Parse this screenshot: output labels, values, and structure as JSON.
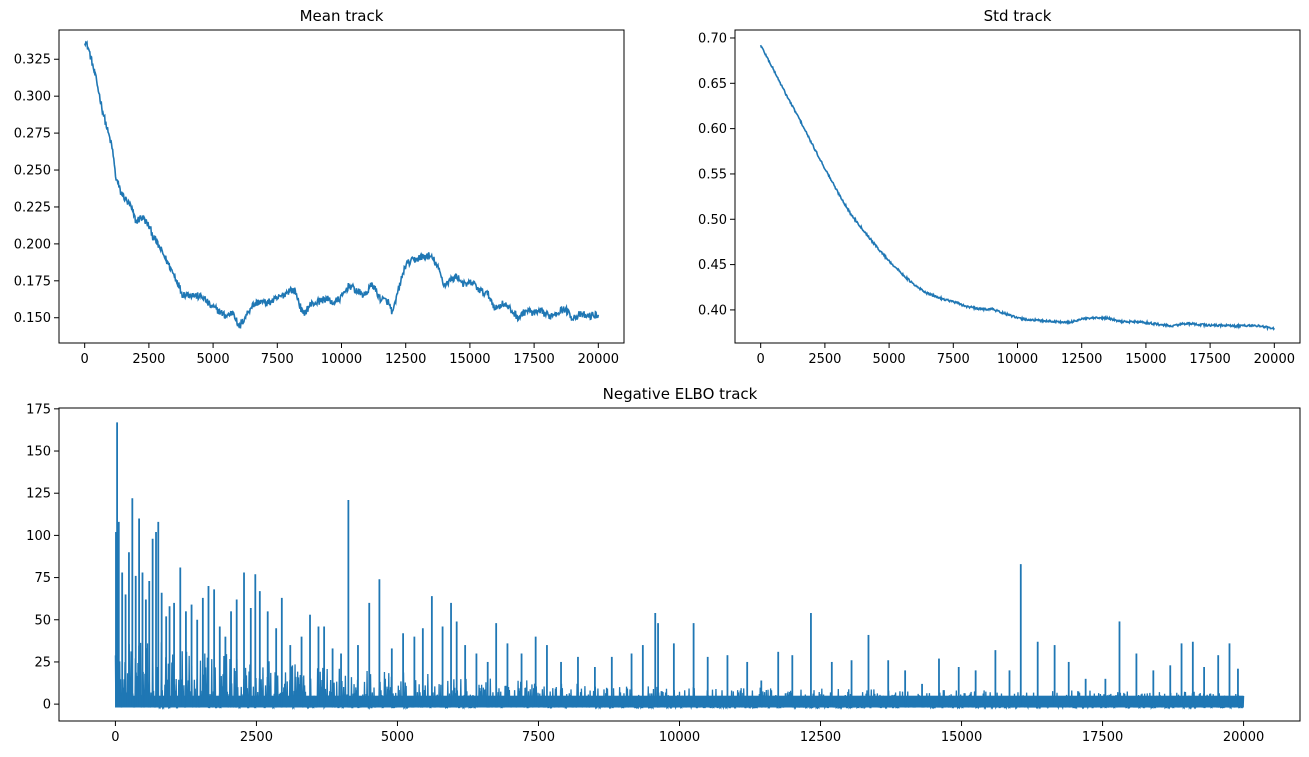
{
  "chart_data": [
    {
      "id": "mean",
      "type": "line",
      "title": "Mean track",
      "xlabel": "",
      "ylabel": "",
      "xlim": [
        -1000,
        21000
      ],
      "ylim": [
        0.1329,
        0.3448
      ],
      "xticks": [
        0,
        2500,
        5000,
        7500,
        10000,
        12500,
        15000,
        17500,
        20000
      ],
      "xtick_labels": [
        "0",
        "2500",
        "5000",
        "7500",
        "10000",
        "12500",
        "15000",
        "17500",
        "20000"
      ],
      "yticks": [
        0.15,
        0.175,
        0.2,
        0.225,
        0.25,
        0.275,
        0.3,
        0.325
      ],
      "ytick_labels": [
        "0.150",
        "0.175",
        "0.200",
        "0.225",
        "0.250",
        "0.275",
        "0.300",
        "0.325"
      ],
      "color": "#1f77b4",
      "grid": false,
      "series": [
        {
          "name": "mean",
          "noise": 0.0025,
          "x": [
            0,
            150,
            300,
            500,
            700,
            900,
            1000,
            1100,
            1200,
            1400,
            1600,
            1800,
            2000,
            2200,
            2300,
            2500,
            2700,
            3000,
            3300,
            3600,
            3800,
            4000,
            4300,
            4600,
            4900,
            5200,
            5500,
            5800,
            6000,
            6200,
            6500,
            6800,
            7100,
            7400,
            7700,
            8000,
            8200,
            8500,
            8800,
            9100,
            9400,
            9700,
            10000,
            10300,
            10600,
            10900,
            11200,
            11500,
            11800,
            12000,
            12200,
            12500,
            12800,
            13100,
            13400,
            13600,
            13800,
            14000,
            14200,
            14500,
            14800,
            15100,
            15400,
            15700,
            16000,
            16300,
            16600,
            16900,
            17200,
            17500,
            17800,
            18100,
            18400,
            18700,
            19000,
            19300,
            19600,
            20000
          ],
          "y": [
            0.338,
            0.332,
            0.322,
            0.307,
            0.29,
            0.276,
            0.27,
            0.262,
            0.246,
            0.235,
            0.23,
            0.225,
            0.215,
            0.218,
            0.217,
            0.212,
            0.204,
            0.195,
            0.185,
            0.175,
            0.166,
            0.166,
            0.165,
            0.164,
            0.158,
            0.155,
            0.151,
            0.154,
            0.143,
            0.149,
            0.158,
            0.161,
            0.16,
            0.162,
            0.165,
            0.169,
            0.168,
            0.152,
            0.159,
            0.161,
            0.163,
            0.16,
            0.164,
            0.172,
            0.168,
            0.165,
            0.173,
            0.163,
            0.161,
            0.153,
            0.168,
            0.186,
            0.189,
            0.191,
            0.192,
            0.189,
            0.182,
            0.172,
            0.175,
            0.178,
            0.172,
            0.174,
            0.168,
            0.166,
            0.156,
            0.16,
            0.155,
            0.15,
            0.155,
            0.153,
            0.154,
            0.151,
            0.154,
            0.156,
            0.15,
            0.152,
            0.151,
            0.152
          ]
        }
      ]
    },
    {
      "id": "std",
      "type": "line",
      "title": "Std track",
      "xlabel": "",
      "ylabel": "",
      "xlim": [
        -1000,
        21000
      ],
      "ylim": [
        0.3635,
        0.7088
      ],
      "xticks": [
        0,
        2500,
        5000,
        7500,
        10000,
        12500,
        15000,
        17500,
        20000
      ],
      "xtick_labels": [
        "0",
        "2500",
        "5000",
        "7500",
        "10000",
        "12500",
        "15000",
        "17500",
        "20000"
      ],
      "yticks": [
        0.4,
        0.45,
        0.5,
        0.55,
        0.6,
        0.65,
        0.7
      ],
      "ytick_labels": [
        "0.40",
        "0.45",
        "0.50",
        "0.55",
        "0.60",
        "0.65",
        "0.70"
      ],
      "color": "#1f77b4",
      "grid": false,
      "series": [
        {
          "name": "std",
          "noise": 0.0012,
          "x": [
            0,
            500,
            1000,
            1500,
            2000,
            2500,
            3000,
            3500,
            4000,
            4500,
            5000,
            5500,
            6000,
            6500,
            7000,
            7500,
            8000,
            8500,
            9000,
            9500,
            10000,
            10500,
            11000,
            11500,
            12000,
            12500,
            13000,
            13500,
            14000,
            14500,
            15000,
            15500,
            16000,
            16500,
            17000,
            17500,
            18000,
            18500,
            19000,
            19500,
            20000
          ],
          "y": [
            0.692,
            0.665,
            0.637,
            0.611,
            0.583,
            0.556,
            0.53,
            0.506,
            0.488,
            0.47,
            0.454,
            0.44,
            0.427,
            0.418,
            0.413,
            0.409,
            0.404,
            0.401,
            0.401,
            0.396,
            0.391,
            0.389,
            0.388,
            0.387,
            0.386,
            0.39,
            0.391,
            0.391,
            0.387,
            0.387,
            0.386,
            0.384,
            0.382,
            0.385,
            0.384,
            0.383,
            0.383,
            0.382,
            0.383,
            0.382,
            0.379
          ]
        }
      ]
    },
    {
      "id": "elbo",
      "type": "line",
      "title": "Negative ELBO track",
      "xlabel": "",
      "ylabel": "",
      "xlim": [
        -1000,
        21000
      ],
      "ylim": [
        -10,
        175.5
      ],
      "xticks": [
        0,
        2500,
        5000,
        7500,
        10000,
        12500,
        15000,
        17500,
        20000
      ],
      "xtick_labels": [
        "0",
        "2500",
        "5000",
        "7500",
        "10000",
        "12500",
        "15000",
        "17500",
        "20000"
      ],
      "yticks": [
        0,
        25,
        50,
        75,
        100,
        125,
        150,
        175
      ],
      "ytick_labels": [
        "0",
        "25",
        "50",
        "75",
        "100",
        "125",
        "150",
        "175"
      ],
      "color": "#1f77b4",
      "grid": false,
      "baseline": -2,
      "band": [
        {
          "x": 0,
          "y": 40
        },
        {
          "x": 1000,
          "y": 35
        },
        {
          "x": 2500,
          "y": 25
        },
        {
          "x": 4000,
          "y": 20
        },
        {
          "x": 6000,
          "y": 16
        },
        {
          "x": 8000,
          "y": 12
        },
        {
          "x": 10000,
          "y": 10
        },
        {
          "x": 12000,
          "y": 9
        },
        {
          "x": 15000,
          "y": 8
        },
        {
          "x": 20000,
          "y": 7
        }
      ],
      "peaks": [
        {
          "x": 10,
          "y": 102
        },
        {
          "x": 30,
          "y": 167
        },
        {
          "x": 60,
          "y": 108
        },
        {
          "x": 120,
          "y": 78
        },
        {
          "x": 180,
          "y": 65
        },
        {
          "x": 240,
          "y": 90
        },
        {
          "x": 300,
          "y": 122
        },
        {
          "x": 360,
          "y": 76
        },
        {
          "x": 420,
          "y": 110
        },
        {
          "x": 480,
          "y": 78
        },
        {
          "x": 540,
          "y": 62
        },
        {
          "x": 600,
          "y": 73
        },
        {
          "x": 660,
          "y": 98
        },
        {
          "x": 720,
          "y": 102
        },
        {
          "x": 760,
          "y": 108
        },
        {
          "x": 820,
          "y": 66
        },
        {
          "x": 900,
          "y": 52
        },
        {
          "x": 960,
          "y": 58
        },
        {
          "x": 1040,
          "y": 60
        },
        {
          "x": 1150,
          "y": 81
        },
        {
          "x": 1250,
          "y": 55
        },
        {
          "x": 1350,
          "y": 59
        },
        {
          "x": 1450,
          "y": 50
        },
        {
          "x": 1550,
          "y": 63
        },
        {
          "x": 1650,
          "y": 70
        },
        {
          "x": 1750,
          "y": 68
        },
        {
          "x": 1850,
          "y": 46
        },
        {
          "x": 1950,
          "y": 40
        },
        {
          "x": 2050,
          "y": 55
        },
        {
          "x": 2150,
          "y": 62
        },
        {
          "x": 2280,
          "y": 78
        },
        {
          "x": 2400,
          "y": 57
        },
        {
          "x": 2480,
          "y": 77
        },
        {
          "x": 2560,
          "y": 67
        },
        {
          "x": 2700,
          "y": 55
        },
        {
          "x": 2850,
          "y": 45
        },
        {
          "x": 2950,
          "y": 63
        },
        {
          "x": 3100,
          "y": 35
        },
        {
          "x": 3300,
          "y": 40
        },
        {
          "x": 3450,
          "y": 53
        },
        {
          "x": 3600,
          "y": 46
        },
        {
          "x": 3700,
          "y": 46
        },
        {
          "x": 3850,
          "y": 33
        },
        {
          "x": 4000,
          "y": 30
        },
        {
          "x": 4130,
          "y": 121
        },
        {
          "x": 4300,
          "y": 35
        },
        {
          "x": 4500,
          "y": 60
        },
        {
          "x": 4680,
          "y": 74
        },
        {
          "x": 4900,
          "y": 33
        },
        {
          "x": 5100,
          "y": 42
        },
        {
          "x": 5300,
          "y": 40
        },
        {
          "x": 5450,
          "y": 45
        },
        {
          "x": 5610,
          "y": 64
        },
        {
          "x": 5800,
          "y": 46
        },
        {
          "x": 5950,
          "y": 60
        },
        {
          "x": 6050,
          "y": 49
        },
        {
          "x": 6200,
          "y": 35
        },
        {
          "x": 6400,
          "y": 30
        },
        {
          "x": 6600,
          "y": 25
        },
        {
          "x": 6750,
          "y": 48
        },
        {
          "x": 6950,
          "y": 36
        },
        {
          "x": 7200,
          "y": 30
        },
        {
          "x": 7450,
          "y": 40
        },
        {
          "x": 7650,
          "y": 35
        },
        {
          "x": 7900,
          "y": 25
        },
        {
          "x": 8200,
          "y": 28
        },
        {
          "x": 8500,
          "y": 22
        },
        {
          "x": 8800,
          "y": 28
        },
        {
          "x": 9150,
          "y": 30
        },
        {
          "x": 9350,
          "y": 35
        },
        {
          "x": 9570,
          "y": 54
        },
        {
          "x": 9620,
          "y": 48
        },
        {
          "x": 9900,
          "y": 36
        },
        {
          "x": 10250,
          "y": 48
        },
        {
          "x": 10500,
          "y": 28
        },
        {
          "x": 10850,
          "y": 29
        },
        {
          "x": 11200,
          "y": 25
        },
        {
          "x": 11450,
          "y": 14
        },
        {
          "x": 11750,
          "y": 31
        },
        {
          "x": 12000,
          "y": 29
        },
        {
          "x": 12330,
          "y": 54
        },
        {
          "x": 12700,
          "y": 25
        },
        {
          "x": 13050,
          "y": 26
        },
        {
          "x": 13350,
          "y": 41
        },
        {
          "x": 13700,
          "y": 26
        },
        {
          "x": 14000,
          "y": 20
        },
        {
          "x": 14300,
          "y": 12
        },
        {
          "x": 14600,
          "y": 27
        },
        {
          "x": 14950,
          "y": 22
        },
        {
          "x": 15250,
          "y": 20
        },
        {
          "x": 15600,
          "y": 32
        },
        {
          "x": 15850,
          "y": 20
        },
        {
          "x": 16050,
          "y": 83
        },
        {
          "x": 16350,
          "y": 37
        },
        {
          "x": 16650,
          "y": 35
        },
        {
          "x": 16900,
          "y": 25
        },
        {
          "x": 17200,
          "y": 15
        },
        {
          "x": 17550,
          "y": 15
        },
        {
          "x": 17800,
          "y": 49
        },
        {
          "x": 18100,
          "y": 30
        },
        {
          "x": 18400,
          "y": 20
        },
        {
          "x": 18700,
          "y": 23
        },
        {
          "x": 18900,
          "y": 36
        },
        {
          "x": 19100,
          "y": 37
        },
        {
          "x": 19300,
          "y": 22
        },
        {
          "x": 19550,
          "y": 29
        },
        {
          "x": 19750,
          "y": 36
        },
        {
          "x": 19900,
          "y": 21
        }
      ]
    }
  ]
}
